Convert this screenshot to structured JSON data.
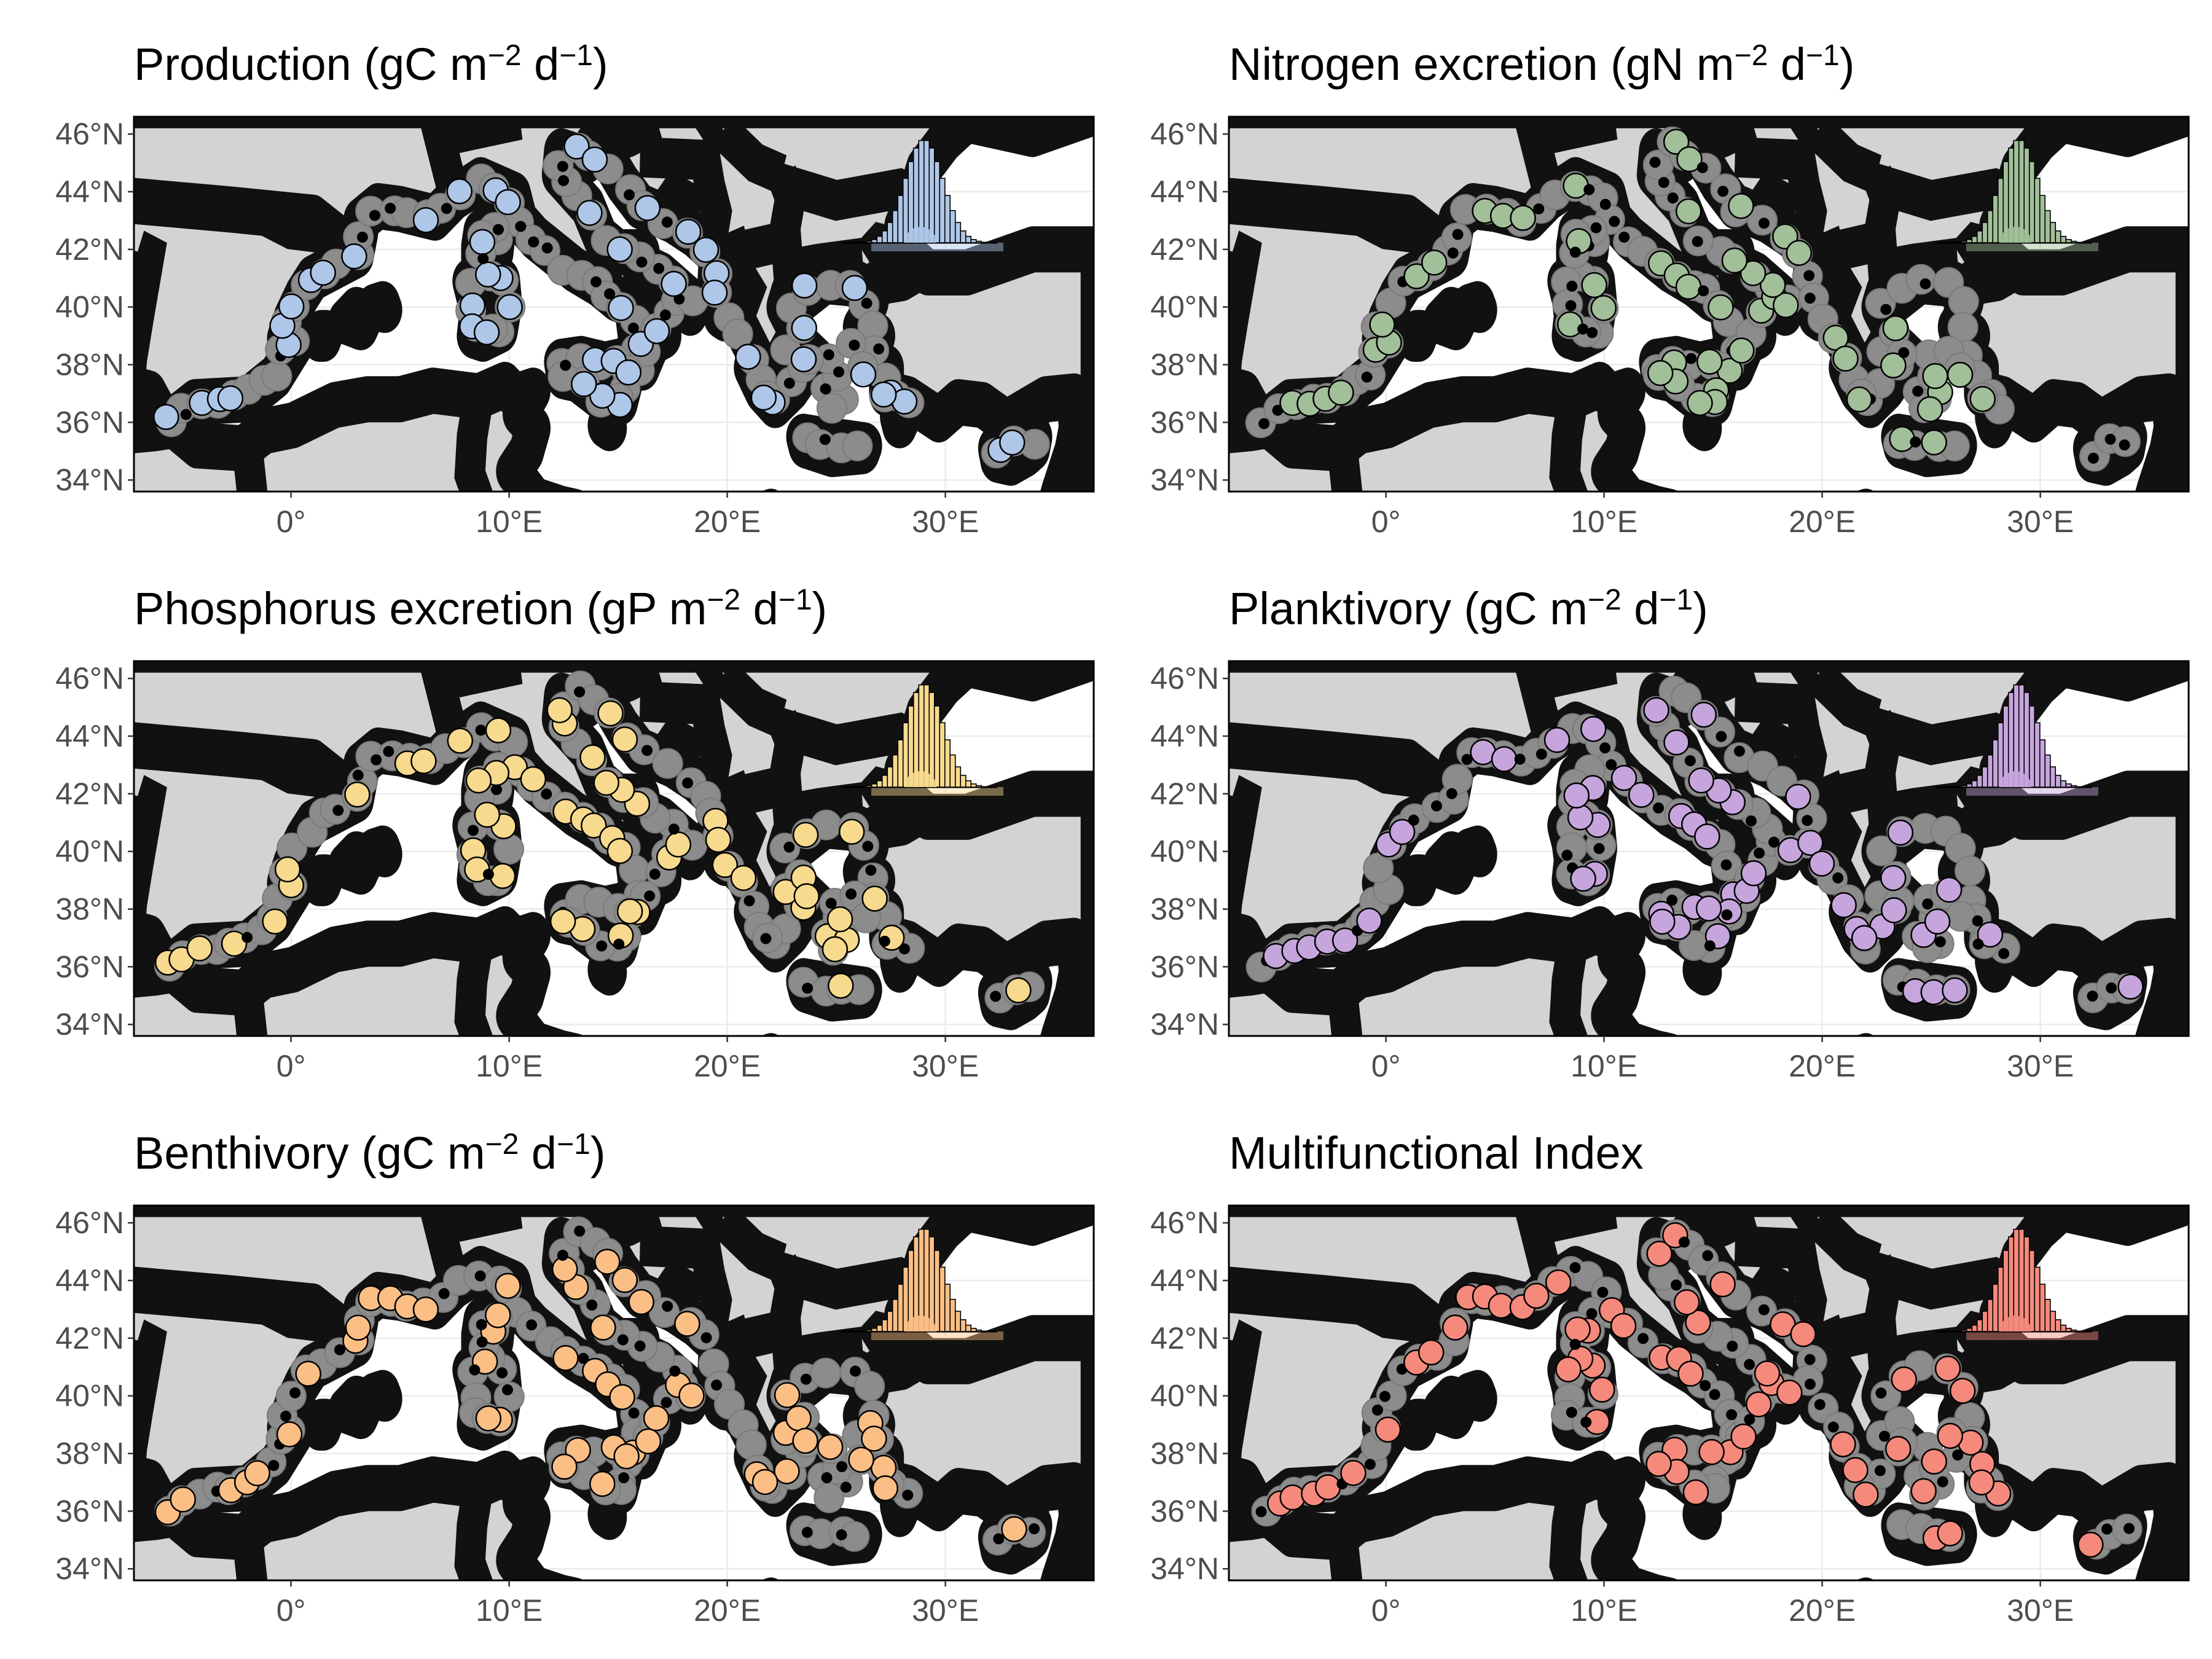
{
  "figure": {
    "lat_ticks": [
      "34°N",
      "36°N",
      "38°N",
      "40°N",
      "42°N",
      "44°N",
      "46°N"
    ],
    "lon_ticks": [
      "0°",
      "10°E",
      "20°E",
      "30°E"
    ],
    "lat_values": [
      34,
      36,
      38,
      40,
      42,
      44,
      46
    ],
    "lon_values": [
      0,
      10,
      20,
      30
    ],
    "extent": {
      "lon": [
        -7.2,
        36.8
      ],
      "lat": [
        33.6,
        46.6
      ]
    },
    "colors": {
      "land": "#d3d3d3",
      "gray_points": "#8c8c8c",
      "dark_points": "#000000",
      "grid": "#ebebeb"
    }
  },
  "panels": [
    {
      "id": "production",
      "title_main": "Production (gC m",
      "exp1": "−2",
      "mid": " d",
      "exp2": "−1",
      "end": ")",
      "color": "#aec7e8"
    },
    {
      "id": "nitrogen",
      "title_main": "Nitrogen excretion (gN m",
      "exp1": "−2",
      "mid": " d",
      "exp2": "−1",
      "end": ")",
      "color": "#a1bf98"
    },
    {
      "id": "phosphorus",
      "title_main": "Phosphorus excretion (gP m",
      "exp1": "−2",
      "mid": " d",
      "exp2": "−1",
      "end": ")",
      "color": "#f7da8e"
    },
    {
      "id": "planktivory",
      "title_main": "Planktivory (gC m",
      "exp1": "−2",
      "mid": " d",
      "exp2": "−1",
      "end": ")",
      "color": "#c6a5dd"
    },
    {
      "id": "benthivory",
      "title_main": "Benthivory (gC m",
      "exp1": "−2",
      "mid": " d",
      "exp2": "−1",
      "end": ")",
      "color": "#fbbf86"
    },
    {
      "id": "multifunctional",
      "title_main": "Multifunctional Index",
      "exp1": "",
      "mid": "",
      "exp2": "",
      "end": "",
      "color": "#f58a7c"
    }
  ]
}
